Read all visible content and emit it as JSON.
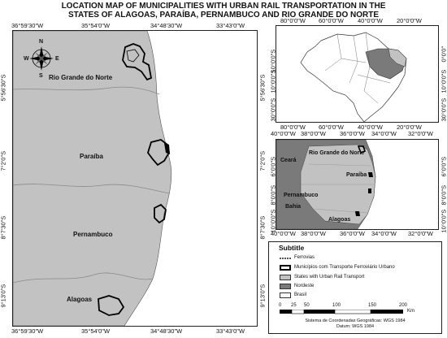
{
  "title": {
    "line1": "LOCATION MAP OF MUNICIPALITIES WITH URBAN RAIL TRANSPORTATION IN THE",
    "line2": "STATES OF ALAGOAS, PARAÍBA, PERNAMBUCO AND RIO GRANDE DO NORTE"
  },
  "main_map": {
    "top_coords": [
      "36°59'30\"W",
      "35°54'0\"W",
      "34°48'30\"W",
      "33°43'0\"W"
    ],
    "bottom_coords": [
      "36°59'30\"W",
      "35°54'0\"W",
      "34°48'30\"W",
      "33°43'0\"W"
    ],
    "lat_coords": [
      "5°56'30\"S",
      "7°2'0\"S",
      "8°7'30\"S",
      "9°13'0\"S"
    ],
    "states": [
      "Rio Grande do Norte",
      "Paraíba",
      "Pernambuco",
      "Alagoas"
    ],
    "compass": {
      "n": "N",
      "s": "S",
      "e": "E",
      "w": "W"
    },
    "colors": {
      "land": "#c2c2c2",
      "sea": "#ffffff",
      "municipality_outline": "#000000"
    }
  },
  "inset_brazil": {
    "top_coords": [
      "80°0'0\"W",
      "60°0'0\"W",
      "40°0'0\"W",
      "20°0'0\"W"
    ],
    "bottom_coords": [
      "80°0'0\"W",
      "60°0'0\"W",
      "40°0'0\"W",
      "20°0'0\"W"
    ],
    "lat_coords": [
      "10°0'0\"S",
      "10°0'0\"S",
      "30°0'0\"S"
    ],
    "right_lat_coords": [
      "0°0'0\"",
      "10°0'0\"S",
      "30°0'0\"S"
    ],
    "colors": {
      "brasil": "#ffffff",
      "nordeste": "#7a7a7a",
      "states_with_rail": "#c2c2c2"
    }
  },
  "inset_region": {
    "top_coords": [
      "40°0'0\"W",
      "38°0'0\"W",
      "36°0'0\"W",
      "34°0'0\"W",
      "32°0'0\"W"
    ],
    "bottom_coords": [
      "40°0'0\"W",
      "38°0'0\"W",
      "36°0'0\"W",
      "34°0'0\"W",
      "32°0'0\"W"
    ],
    "lat_coords": [
      "6°0'0\"S",
      "8°0'0\"S",
      "10°0'0\"S"
    ],
    "labels": [
      "Rio Grande do Norte",
      "Ceará",
      "Paraíba",
      "Pernambuco",
      "Bahia",
      "Alagoas"
    ]
  },
  "legend": {
    "title": "Subtitle",
    "items": [
      {
        "label": "Ferrovias",
        "kind": "line"
      },
      {
        "label": "Municípios com Transporte Ferroviário Urbano",
        "kind": "thick-outline"
      },
      {
        "label": "States with Urban Rail Transport",
        "kind": "fill",
        "color": "#c2c2c2"
      },
      {
        "label": "Nordeste",
        "kind": "fill",
        "color": "#7a7a7a"
      },
      {
        "label": "Brasil",
        "kind": "fill",
        "color": "#ffffff"
      }
    ],
    "scale_ticks": [
      "0",
      "25",
      "50",
      "100",
      "150",
      "200"
    ],
    "scale_unit": "Km",
    "crs_line1": "Sistema de Coordenadas Geográficas: WGS 1984",
    "crs_line2": "Datum: WGS 1984"
  }
}
